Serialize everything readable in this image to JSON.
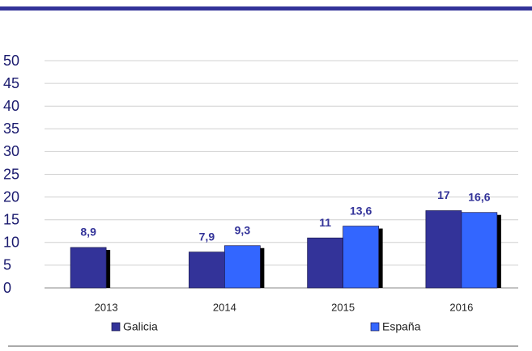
{
  "chart_data": {
    "type": "bar",
    "categories": [
      "2013",
      "2014",
      "2015",
      "2016"
    ],
    "series": [
      {
        "name": "Galicia",
        "color": "#333399",
        "values": [
          8.9,
          7.9,
          11,
          17
        ],
        "value_labels": [
          "8,9",
          "7,9",
          "11",
          "17"
        ]
      },
      {
        "name": "España",
        "color": "#3366ff",
        "values": [
          null,
          9.3,
          13.6,
          16.6
        ],
        "value_labels": [
          null,
          "9,3",
          "13,6",
          "16,6"
        ]
      }
    ],
    "ylim": [
      0,
      50
    ],
    "yticks": [
      0,
      5,
      10,
      15,
      20,
      25,
      30,
      35,
      40,
      45,
      50
    ],
    "grid": true
  }
}
